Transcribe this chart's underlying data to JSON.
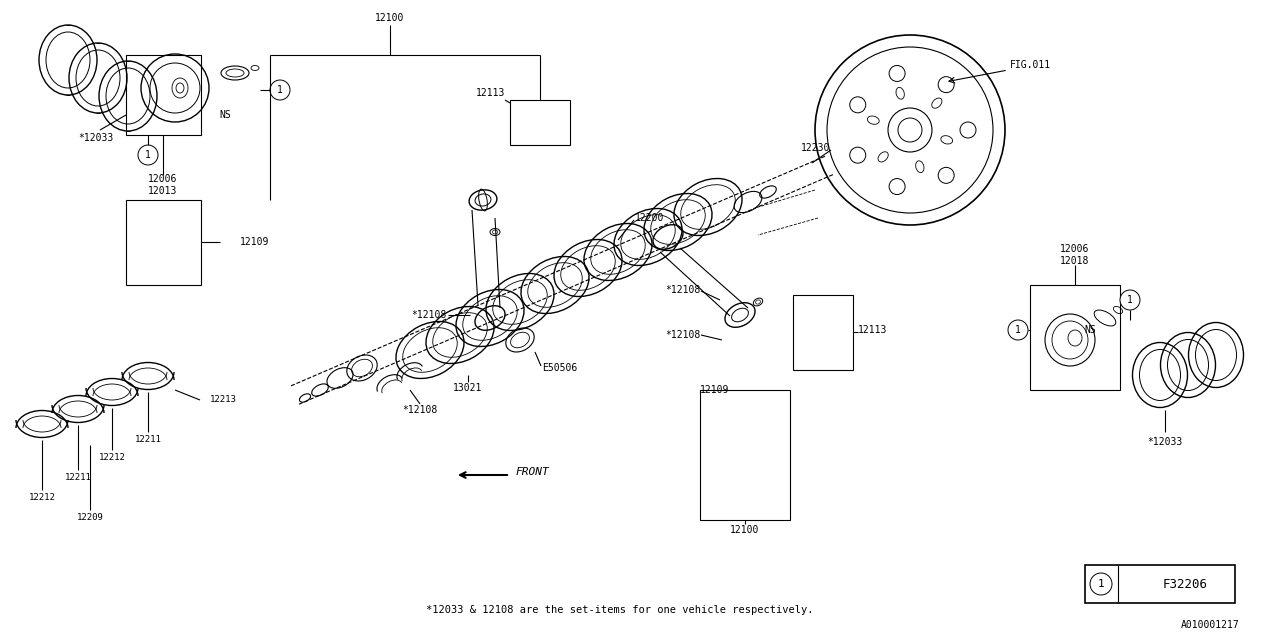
{
  "bg_color": "#ffffff",
  "line_color": "#000000",
  "fig_width": 12.8,
  "fig_height": 6.4,
  "footnote": "*12033 & 12108 are the set-items for one vehicle respectively.",
  "doc_number": "A010001217",
  "fig_ref": "FIG.011",
  "legend_code": "F32206",
  "parts": {
    "p12033_tl": "*12033",
    "p12006_12013": "12006\n12013",
    "p12006_12018": "12006\n12018",
    "p12033_tr": "*12033",
    "p12109_l": "12109",
    "p12109_r": "12109",
    "p12100_t": "12100",
    "p12100_b": "12100",
    "p12113_t": "12113",
    "p12113_r": "12113",
    "p12108_a": "*12108",
    "p12108_b": "*12108",
    "p12108_c": "*12108",
    "p12108_d": "*12108",
    "p12200": "12200",
    "p12230": "12230",
    "pE50506": "E50506",
    "p13021": "13021",
    "p12209": "12209",
    "p12211_a": "12211",
    "p12211_b": "12211",
    "p12212_a": "12212",
    "p12212_b": "12212",
    "p12213": "12213",
    "front": "FRONT",
    "ns": "NS"
  }
}
